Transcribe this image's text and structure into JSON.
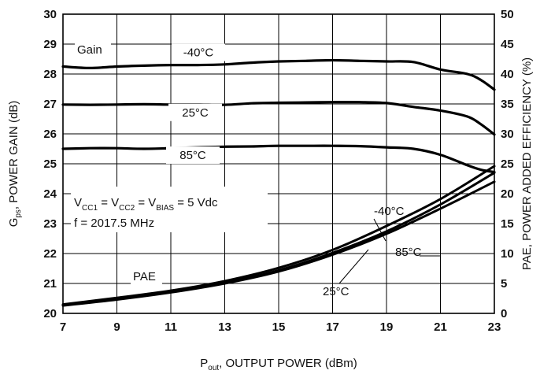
{
  "chart_data": {
    "type": "line",
    "xlabel": {
      "main": "P",
      "sub": "out",
      "rest": ", OUTPUT POWER (dBm)"
    },
    "ylabel_left": {
      "main": "G",
      "sub": "ps",
      "rest": ", POWER GAIN (dB)"
    },
    "ylabel_right": "PAE, POWER ADDED EFFICIENCY (%)",
    "xlim": [
      7,
      23
    ],
    "ylim_left": [
      20,
      30
    ],
    "ylim_right": [
      0,
      50
    ],
    "x_ticks": [
      "7",
      "9",
      "11",
      "13",
      "15",
      "17",
      "19",
      "21",
      "23"
    ],
    "y_left_ticks": [
      "20",
      "21",
      "22",
      "23",
      "24",
      "25",
      "26",
      "27",
      "28",
      "29",
      "30"
    ],
    "y_right_ticks": [
      "0",
      "5",
      "10",
      "15",
      "20",
      "25",
      "30",
      "35",
      "40",
      "45",
      "50"
    ],
    "grid": true,
    "annotations": {
      "gain": "Gain",
      "pae": "PAE",
      "conditions": {
        "v1": "V",
        "v1_sub": "CC1",
        "eq1": " = V",
        "v2_sub": "CC2",
        "eq2": " = V",
        "v3_sub": "BIAS",
        "eq3": " = 5 Vdc"
      },
      "freq": "f = 2017.5 MHz"
    },
    "gain_series": [
      {
        "name": "-40°C",
        "x": [
          7,
          8,
          9,
          10,
          11,
          12,
          13,
          14,
          15,
          16,
          17,
          18,
          19,
          20,
          21,
          22,
          22.5,
          23
        ],
        "y": [
          28.25,
          28.2,
          28.25,
          28.28,
          28.3,
          28.3,
          28.32,
          28.38,
          28.42,
          28.44,
          28.46,
          28.44,
          28.42,
          28.4,
          28.15,
          28.0,
          27.8,
          27.48
        ]
      },
      {
        "name": "25°C",
        "x": [
          7,
          8,
          9,
          10,
          11,
          12,
          13,
          14,
          15,
          16,
          17,
          18,
          19,
          20,
          21,
          22,
          22.5,
          23
        ],
        "y": [
          26.98,
          26.97,
          26.98,
          26.99,
          26.98,
          26.98,
          26.97,
          27.02,
          27.04,
          27.05,
          27.06,
          27.06,
          27.03,
          26.9,
          26.78,
          26.58,
          26.32,
          25.98
        ]
      },
      {
        "name": "85°C",
        "x": [
          7,
          8,
          9,
          10,
          11,
          12,
          13,
          14,
          15,
          16,
          17,
          18,
          19,
          20,
          21,
          22,
          22.5,
          23
        ],
        "y": [
          25.5,
          25.52,
          25.52,
          25.5,
          25.52,
          25.55,
          25.57,
          25.58,
          25.6,
          25.6,
          25.6,
          25.59,
          25.55,
          25.5,
          25.3,
          24.95,
          24.8,
          24.72
        ]
      }
    ],
    "pae_series": [
      {
        "name": "-40°C",
        "x": [
          7,
          9,
          11,
          13,
          15,
          17,
          19,
          21,
          23
        ],
        "y": [
          1.5,
          2.6,
          3.8,
          5.4,
          7.6,
          10.6,
          14.6,
          19.1,
          24.6
        ]
      },
      {
        "name": "25°C",
        "x": [
          7,
          9,
          11,
          13,
          15,
          17,
          19,
          21,
          23
        ],
        "y": [
          1.4,
          2.4,
          3.6,
          5.1,
          7.2,
          10.1,
          13.7,
          18.2,
          23.5
        ]
      },
      {
        "name": "85°C",
        "x": [
          7,
          9,
          11,
          13,
          15,
          17,
          19,
          21,
          23
        ],
        "y": [
          1.3,
          2.3,
          3.5,
          5.0,
          7.0,
          9.8,
          13.3,
          17.5,
          22.0
        ]
      }
    ]
  }
}
